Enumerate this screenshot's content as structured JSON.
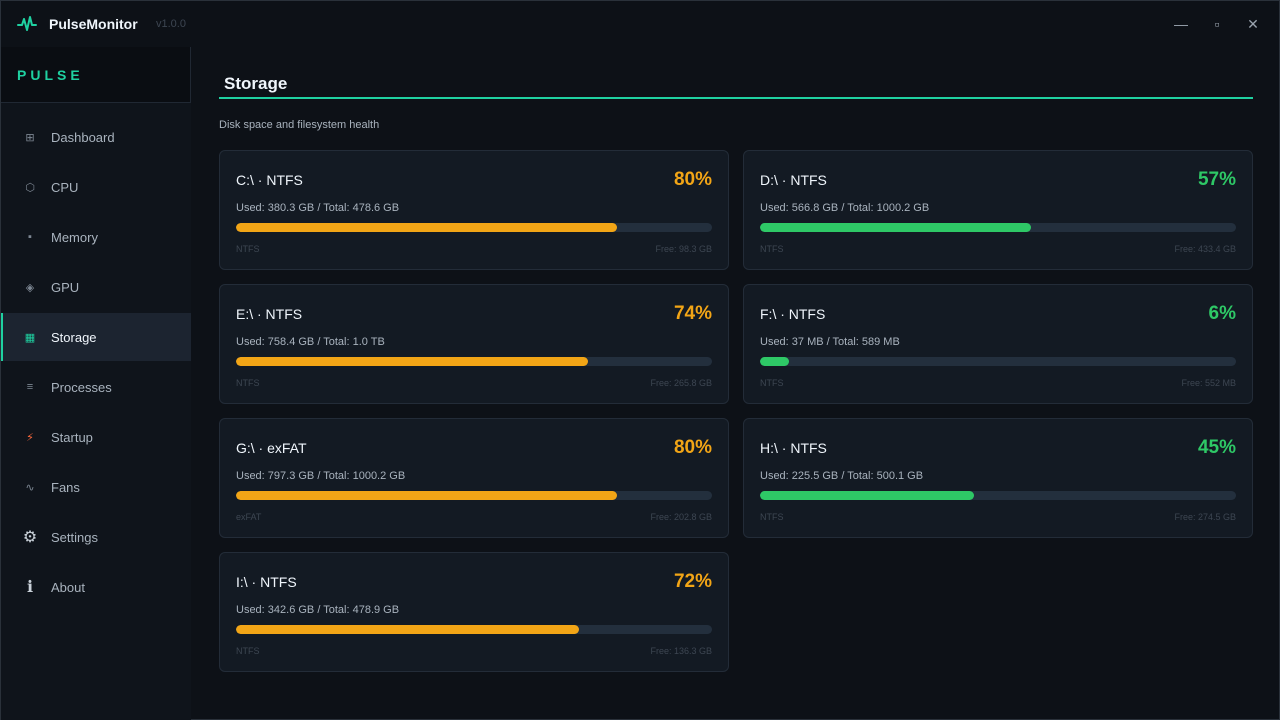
{
  "app": {
    "name": "PulseMonitor",
    "version": "v1.0.0",
    "brand": "PULSE",
    "accent": "#1fd1a1"
  },
  "window_controls": {
    "minimize": "—",
    "maximize": "▫",
    "close": "✕"
  },
  "sidebar": {
    "items": [
      {
        "label": "Dashboard",
        "icon": "grid-icon",
        "glyph": "⊞"
      },
      {
        "label": "CPU",
        "icon": "hexagon-icon",
        "glyph": "⬡"
      },
      {
        "label": "Memory",
        "icon": "memory-icon",
        "glyph": "▪"
      },
      {
        "label": "GPU",
        "icon": "diamond-icon",
        "glyph": "◈"
      },
      {
        "label": "Storage",
        "icon": "storage-icon",
        "glyph": "▦",
        "active": true
      },
      {
        "label": "Processes",
        "icon": "list-icon",
        "glyph": "≡"
      },
      {
        "label": "Startup",
        "icon": "lightning-icon",
        "glyph": "⚡"
      },
      {
        "label": "Fans",
        "icon": "fan-icon",
        "glyph": "∿"
      },
      {
        "label": "Settings",
        "icon": "gear-icon",
        "glyph": "⚙"
      },
      {
        "label": "About",
        "icon": "info-icon",
        "glyph": "ℹ"
      }
    ]
  },
  "main": {
    "title": "Storage",
    "subtitle": "Disk space and filesystem health"
  },
  "colors": {
    "warning": "#f2a516",
    "good": "#2ec866"
  },
  "drives": [
    {
      "title": "C:\\  ·  NTFS",
      "percent": 80,
      "pct_label": "80%",
      "status": "warning",
      "usage": "Used: 380.3 GB  /  Total: 478.6 GB",
      "fs": "NTFS",
      "free": "Free: 98.3 GB"
    },
    {
      "title": "D:\\  ·  NTFS",
      "percent": 57,
      "pct_label": "57%",
      "status": "good",
      "usage": "Used: 566.8 GB  /  Total: 1000.2 GB",
      "fs": "NTFS",
      "free": "Free: 433.4 GB"
    },
    {
      "title": "E:\\  ·  NTFS",
      "percent": 74,
      "pct_label": "74%",
      "status": "warning",
      "usage": "Used: 758.4 GB  /  Total: 1.0 TB",
      "fs": "NTFS",
      "free": "Free: 265.8 GB"
    },
    {
      "title": "F:\\  ·  NTFS",
      "percent": 6,
      "pct_label": "6%",
      "status": "good",
      "usage": "Used: 37 MB  /  Total: 589 MB",
      "fs": "NTFS",
      "free": "Free: 552 MB"
    },
    {
      "title": "G:\\  ·  exFAT",
      "percent": 80,
      "pct_label": "80%",
      "status": "warning",
      "usage": "Used: 797.3 GB  /  Total: 1000.2 GB",
      "fs": "exFAT",
      "free": "Free: 202.8 GB"
    },
    {
      "title": "H:\\  ·  NTFS",
      "percent": 45,
      "pct_label": "45%",
      "status": "good",
      "usage": "Used: 225.5 GB  /  Total: 500.1 GB",
      "fs": "NTFS",
      "free": "Free: 274.5 GB"
    },
    {
      "title": "I:\\  ·  NTFS",
      "percent": 72,
      "pct_label": "72%",
      "status": "warning",
      "usage": "Used: 342.6 GB  /  Total: 478.9 GB",
      "fs": "NTFS",
      "free": "Free: 136.3 GB"
    }
  ]
}
